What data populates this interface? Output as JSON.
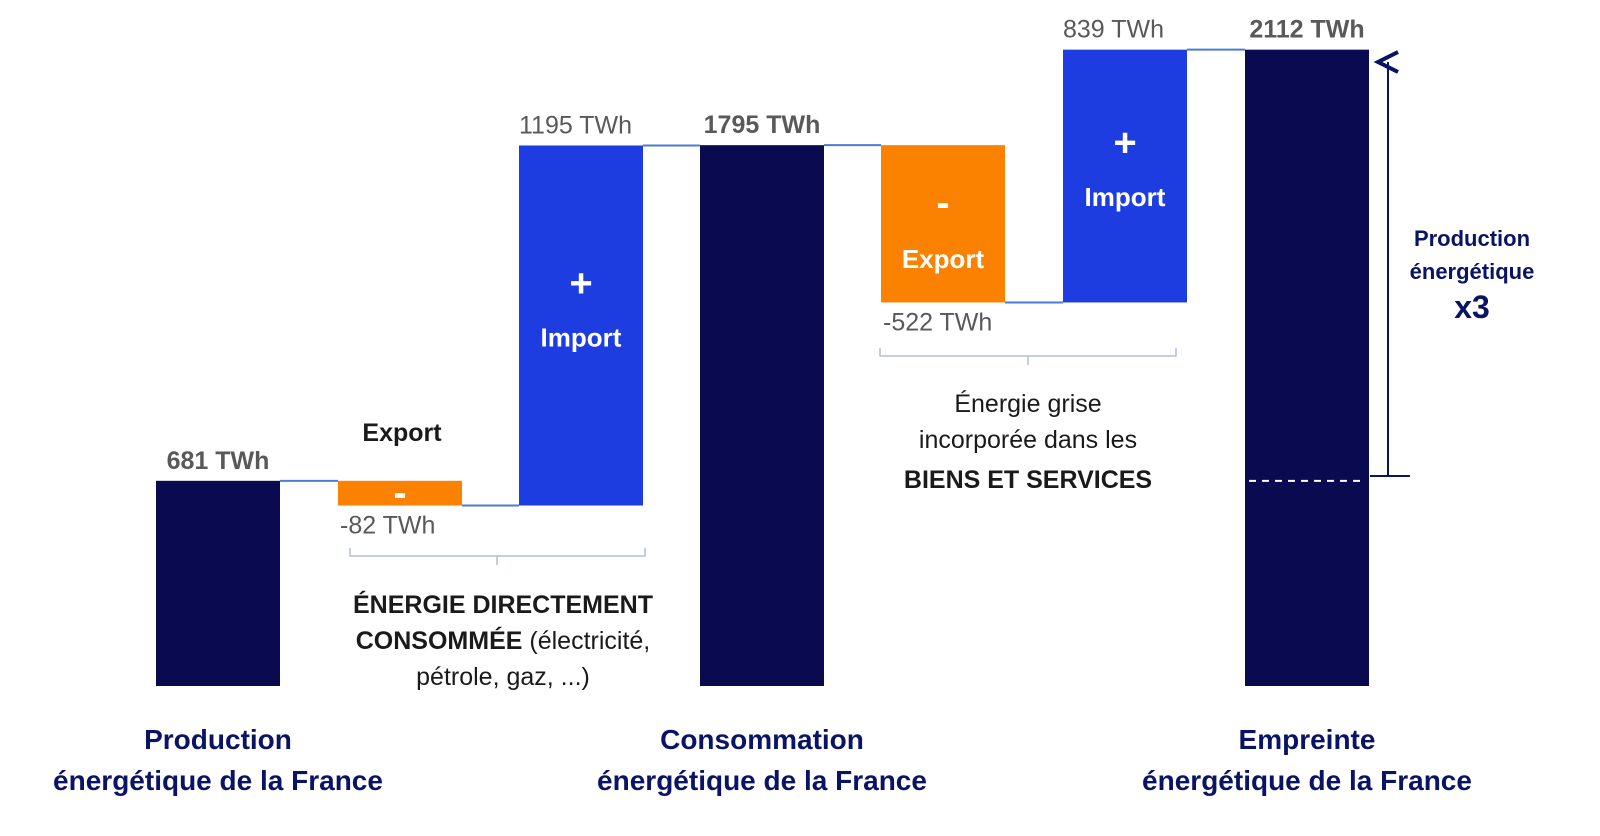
{
  "colors": {
    "total": "#0a0a50",
    "import": "#1e3de0",
    "export": "#fa8200",
    "connector": "#4a7bd6",
    "label": "#0a1464",
    "value": "#595959"
  },
  "chart_data": {
    "type": "bar",
    "subtype": "waterfall",
    "unit": "TWh",
    "steps": [
      {
        "kind": "total",
        "value": 681,
        "value_label": "681 TWh",
        "category": [
          "Production",
          "énergétique de la France"
        ]
      },
      {
        "kind": "export",
        "value": -82,
        "value_label": "-82 TWh",
        "inner_symbol": "-",
        "inner_text": "Export"
      },
      {
        "kind": "import",
        "value": 1195,
        "value_label": "1195 TWh",
        "inner_symbol": "+",
        "inner_text": "Import"
      },
      {
        "kind": "total",
        "value": 1795,
        "value_label": "1795 TWh",
        "category": [
          "Consommation",
          "énergétique de la France"
        ]
      },
      {
        "kind": "export",
        "value": -522,
        "value_label": "-522 TWh",
        "inner_symbol": "-",
        "inner_text": "Export"
      },
      {
        "kind": "import",
        "value": 839,
        "value_label": "839 TWh",
        "inner_symbol": "+",
        "inner_text": "Import"
      },
      {
        "kind": "total",
        "value": 2112,
        "value_label": "2112 TWh",
        "category": [
          "Empreinte",
          "énergétique de la France"
        ]
      }
    ],
    "annotations": {
      "direct_line1": "ÉNERGIE DIRECTEMENT",
      "direct_line2_bold": "CONSOMMÉE",
      "direct_line2_rest": " (électricité,",
      "direct_line3": "pétrole, gaz, ...)",
      "grey_line1": "Énergie grise",
      "grey_line2": "incorporée dans les",
      "grey_line3": "BIENS ET SERVICES",
      "ratio_line1": "Production",
      "ratio_line2": "énergétique",
      "ratio_value": "x3"
    },
    "axes": {
      "x_visible": false,
      "y_visible": false
    },
    "grid": false,
    "legend": "none"
  }
}
